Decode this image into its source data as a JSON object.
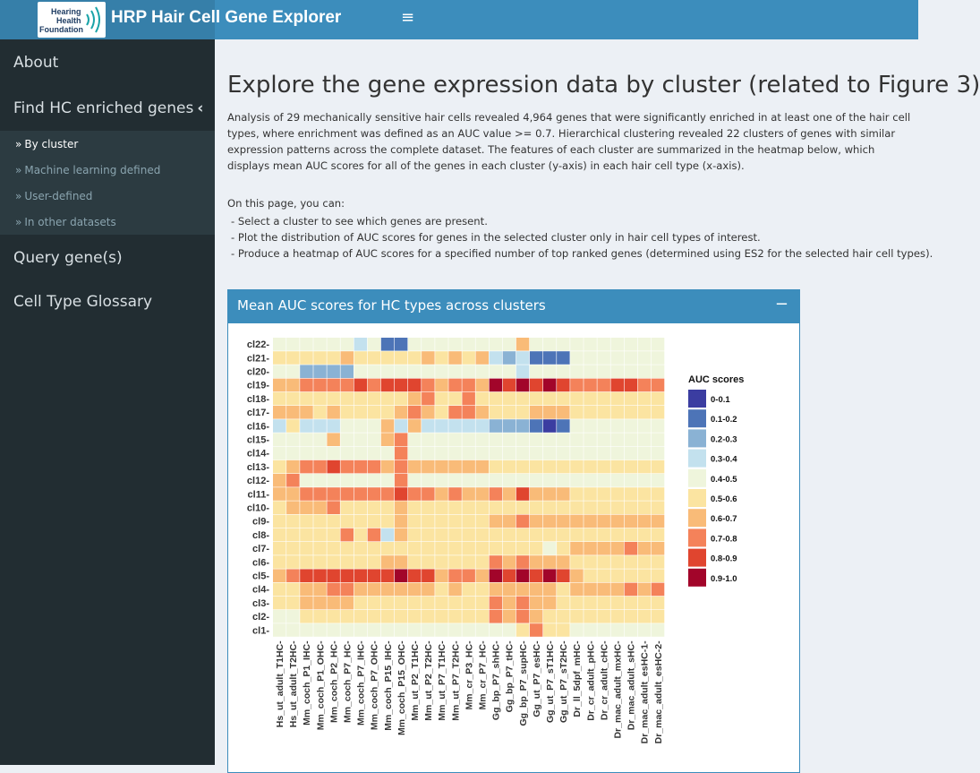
{
  "header": {
    "logo_line1": "Hearing",
    "logo_line2": "Health",
    "logo_line3": "Foundation",
    "app_title": "HRP Hair Cell Gene Explorer",
    "menu_icon": "hamburger-icon"
  },
  "sidebar": {
    "items": [
      {
        "label": "About"
      },
      {
        "label": "Find HC enriched genes",
        "expanded": true
      },
      {
        "label": "Query gene(s)"
      },
      {
        "label": "Cell Type Glossary"
      }
    ],
    "subitems": [
      {
        "label": "By cluster",
        "active": true
      },
      {
        "label": "Machine learning defined"
      },
      {
        "label": "User-defined"
      },
      {
        "label": "In other datasets"
      }
    ]
  },
  "main": {
    "title": "Explore the gene expression data by cluster (related to Figure 3)",
    "intro": "Analysis of 29 mechanically sensitive hair cells revealed 4,964 genes that were significantly enriched in at least one of the hair cell types, where enrichment was defined as an AUC value >= 0.7. Hierarchical clustering revealed 22 clusters of genes with similar expression patterns across the complete dataset. The features of each cluster are summarized in the heatmap below, which displays mean AUC scores for all of the genes in each cluster (y-axis) in each hair cell type (x-axis).",
    "can_heading": "On this page, you can:",
    "bullets": [
      "- Select a cluster to see which genes are present.",
      "- Plot the distribution of AUC scores for genes in the selected cluster only in hair cell types of interest.",
      "- Produce a heatmap of AUC scores for a specified number of top ranked genes (determined using ES2 for the selected hair cell types)."
    ],
    "box_title": "Mean AUC scores for HC types across clusters",
    "box_tool": "−"
  },
  "chart_data": {
    "type": "heatmap",
    "x_categories": [
      "Hs_ut_adult_T1HC",
      "Hs_ut_adult_T2HC",
      "Mm_coch_P1_IHC",
      "Mm_coch_P1_OHC",
      "Mm_coch_P2_HC",
      "Mm_coch_P7_HC",
      "Mm_coch_P7_IHC",
      "Mm_coch_P7_OHC",
      "Mm_coch_P15_IHC",
      "Mm_coch_P15_OHC",
      "Mm_ut_P2_T1HC",
      "Mm_ut_P2_T2HC",
      "Mm_ut_P7_T1HC",
      "Mm_ut_P7_T2HC",
      "Mm_cr_P3_HC",
      "Mm_cr_P7_HC",
      "Gg_bp_P7_shHC",
      "Gg_bp_P7_tHC",
      "Gg_bp_P7_supHC",
      "Gg_ut_P7_esHC",
      "Gg_ut_P7_sT1HC",
      "Gg_ut_P7_sT2HC",
      "Dr_ll_5dpf_mHC",
      "Dr_cr_adult_pHC",
      "Dr_cr_adult_cHC",
      "Dr_mac_adult_mxHC",
      "Dr_mac_adult_sHC",
      "Dr_mac_adult_esHC-1",
      "Dr_mac_adult_esHC-2"
    ],
    "y_categories": [
      "cl22",
      "cl21",
      "cl20",
      "cl19",
      "cl18",
      "cl17",
      "cl16",
      "cl15",
      "cl14",
      "cl13",
      "cl12",
      "cl11",
      "cl10",
      "cl9",
      "cl8",
      "cl7",
      "cl6",
      "cl5",
      "cl4",
      "cl3",
      "cl2",
      "cl1"
    ],
    "legend": {
      "title": "AUC scores",
      "position": "right",
      "bins": [
        "0-0.1",
        "0.1-0.2",
        "0.2-0.3",
        "0.3-0.4",
        "0.4-0.5",
        "0.5-0.6",
        "0.6-0.7",
        "0.7-0.8",
        "0.8-0.9",
        "0.9-1.0"
      ],
      "colors": [
        "#3b3da1",
        "#4d74b7",
        "#8ab2d4",
        "#c3e1ee",
        "#eff5dc",
        "#fbe4a1",
        "#f9bb78",
        "#f4825a",
        "#e0452f",
        "#a2052a"
      ]
    },
    "values": [
      [
        4,
        4,
        4,
        4,
        4,
        4,
        3,
        4,
        1,
        1,
        4,
        4,
        4,
        4,
        4,
        4,
        4,
        4,
        6,
        4,
        4,
        4,
        4,
        4,
        4,
        4,
        4,
        4,
        4
      ],
      [
        5,
        5,
        5,
        5,
        5,
        6,
        5,
        5,
        5,
        5,
        5,
        6,
        5,
        6,
        5,
        6,
        3,
        2,
        3,
        1,
        1,
        1,
        4,
        4,
        4,
        4,
        4,
        4,
        4
      ],
      [
        4,
        4,
        2,
        2,
        2,
        2,
        4,
        4,
        4,
        4,
        4,
        4,
        4,
        4,
        4,
        4,
        4,
        4,
        3,
        4,
        4,
        4,
        4,
        4,
        4,
        4,
        4,
        4,
        4
      ],
      [
        6,
        6,
        7,
        7,
        7,
        7,
        8,
        7,
        8,
        8,
        8,
        7,
        6,
        7,
        7,
        6,
        9,
        8,
        9,
        8,
        9,
        8,
        7,
        7,
        7,
        8,
        8,
        7,
        7
      ],
      [
        5,
        5,
        5,
        5,
        5,
        5,
        5,
        5,
        5,
        5,
        6,
        7,
        5,
        5,
        7,
        5,
        5,
        5,
        5,
        5,
        5,
        5,
        5,
        5,
        5,
        5,
        5,
        5,
        5
      ],
      [
        6,
        6,
        6,
        5,
        6,
        5,
        5,
        5,
        5,
        6,
        7,
        6,
        5,
        7,
        7,
        6,
        5,
        5,
        5,
        6,
        6,
        6,
        5,
        5,
        5,
        5,
        5,
        5,
        5
      ],
      [
        3,
        5,
        3,
        3,
        3,
        4,
        4,
        4,
        6,
        3,
        6,
        3,
        3,
        3,
        3,
        3,
        2,
        2,
        2,
        1,
        0,
        1,
        4,
        4,
        4,
        4,
        4,
        4,
        4
      ],
      [
        4,
        4,
        4,
        4,
        6,
        4,
        4,
        4,
        6,
        7,
        4,
        4,
        4,
        4,
        4,
        4,
        4,
        4,
        4,
        4,
        4,
        4,
        4,
        4,
        4,
        4,
        4,
        4,
        4
      ],
      [
        4,
        4,
        4,
        4,
        4,
        4,
        4,
        4,
        4,
        7,
        4,
        4,
        4,
        4,
        4,
        4,
        4,
        4,
        4,
        4,
        4,
        4,
        4,
        4,
        4,
        4,
        4,
        4,
        4
      ],
      [
        5,
        6,
        7,
        7,
        8,
        7,
        7,
        7,
        6,
        7,
        6,
        6,
        6,
        6,
        6,
        6,
        5,
        5,
        5,
        5,
        5,
        5,
        5,
        5,
        5,
        5,
        5,
        5,
        5
      ],
      [
        6,
        7,
        4,
        4,
        4,
        4,
        4,
        4,
        4,
        7,
        4,
        4,
        4,
        4,
        4,
        4,
        4,
        4,
        4,
        4,
        4,
        4,
        4,
        4,
        4,
        4,
        4,
        4,
        4
      ],
      [
        6,
        6,
        7,
        7,
        7,
        7,
        7,
        7,
        7,
        8,
        7,
        7,
        6,
        7,
        6,
        6,
        7,
        6,
        8,
        6,
        6,
        6,
        5,
        5,
        5,
        5,
        5,
        5,
        5
      ],
      [
        5,
        6,
        6,
        6,
        7,
        5,
        5,
        5,
        5,
        6,
        5,
        5,
        5,
        5,
        5,
        5,
        5,
        5,
        5,
        5,
        5,
        5,
        5,
        5,
        5,
        5,
        5,
        5,
        5
      ],
      [
        5,
        5,
        5,
        5,
        5,
        5,
        5,
        5,
        5,
        6,
        5,
        5,
        5,
        5,
        5,
        5,
        6,
        6,
        7,
        6,
        6,
        6,
        6,
        6,
        6,
        6,
        6,
        6,
        6
      ],
      [
        5,
        5,
        5,
        5,
        5,
        7,
        5,
        7,
        3,
        6,
        5,
        5,
        5,
        5,
        5,
        5,
        5,
        5,
        5,
        5,
        5,
        5,
        5,
        5,
        5,
        5,
        5,
        5,
        5
      ],
      [
        5,
        5,
        5,
        5,
        5,
        5,
        5,
        5,
        5,
        5,
        5,
        5,
        5,
        5,
        5,
        5,
        5,
        5,
        5,
        5,
        4,
        5,
        6,
        6,
        6,
        6,
        7,
        6,
        6
      ],
      [
        5,
        5,
        5,
        5,
        5,
        5,
        5,
        5,
        6,
        6,
        5,
        5,
        5,
        5,
        5,
        5,
        7,
        6,
        7,
        6,
        6,
        6,
        5,
        5,
        5,
        5,
        5,
        5,
        5
      ],
      [
        6,
        7,
        8,
        8,
        8,
        8,
        8,
        8,
        8,
        9,
        8,
        8,
        6,
        7,
        7,
        6,
        9,
        8,
        9,
        8,
        9,
        8,
        6,
        5,
        5,
        5,
        5,
        5,
        5
      ],
      [
        5,
        5,
        6,
        6,
        7,
        7,
        6,
        6,
        6,
        6,
        6,
        6,
        5,
        6,
        5,
        5,
        6,
        6,
        6,
        6,
        6,
        5,
        6,
        6,
        6,
        6,
        7,
        6,
        7
      ],
      [
        5,
        5,
        6,
        6,
        6,
        6,
        5,
        5,
        5,
        5,
        5,
        5,
        5,
        5,
        5,
        5,
        7,
        6,
        7,
        6,
        6,
        5,
        5,
        5,
        5,
        5,
        5,
        5,
        5
      ],
      [
        4,
        4,
        5,
        5,
        5,
        5,
        5,
        5,
        5,
        5,
        5,
        5,
        5,
        5,
        5,
        5,
        7,
        6,
        7,
        6,
        5,
        5,
        5,
        5,
        5,
        5,
        5,
        5,
        5
      ],
      [
        4,
        4,
        4,
        4,
        4,
        4,
        4,
        4,
        4,
        4,
        4,
        4,
        4,
        4,
        4,
        4,
        4,
        4,
        5,
        7,
        5,
        5,
        4,
        4,
        4,
        4,
        4,
        4,
        4
      ]
    ],
    "value_encoding": "index into legend.bins"
  }
}
